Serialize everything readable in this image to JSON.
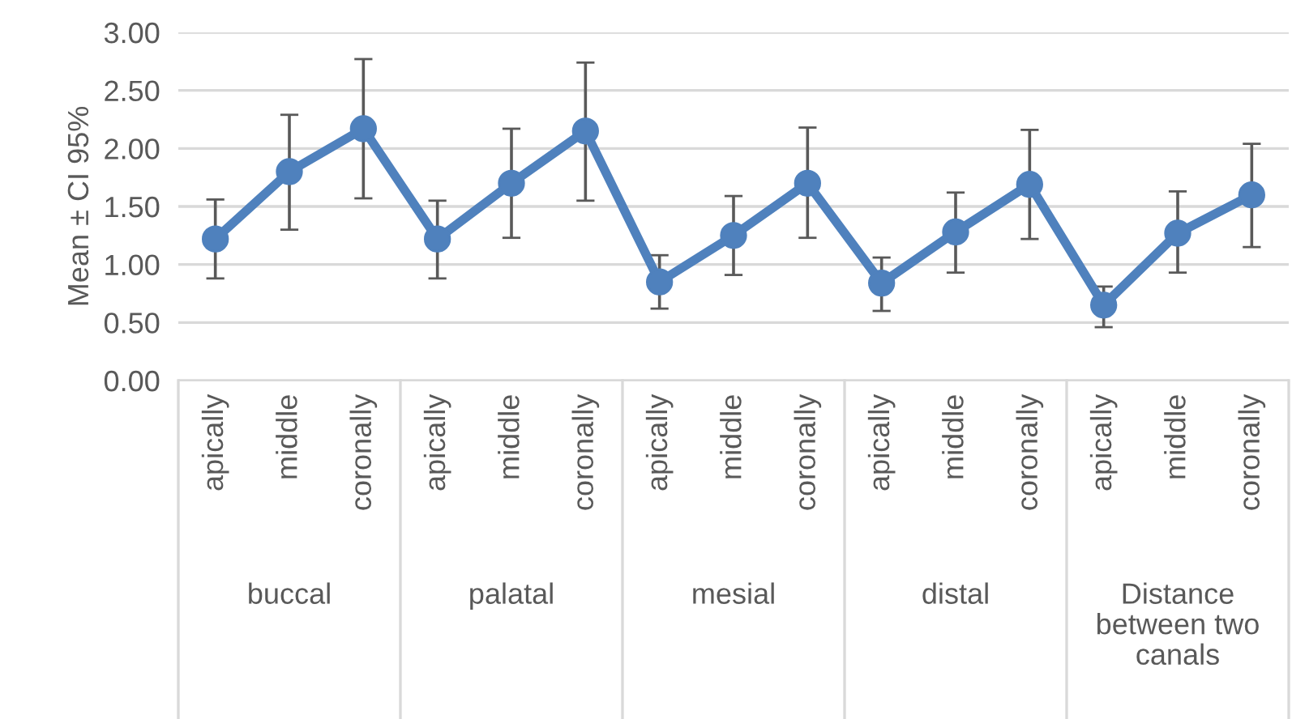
{
  "chart_data": {
    "type": "line",
    "ylabel": "Mean ± CI 95%",
    "categories": [
      "apically",
      "middle",
      "coronally",
      "apically",
      "middle",
      "coronally",
      "apically",
      "middle",
      "coronally",
      "apically",
      "middle",
      "coronally",
      "apically",
      "middle",
      "coronally"
    ],
    "annotations": [
      "buccal",
      "palatal",
      "mesial",
      "distal",
      "Distance between two canals"
    ],
    "series": [
      {
        "color": "#4f81bd",
        "values": [
          1.22,
          1.8,
          2.17,
          1.22,
          1.7,
          2.15,
          0.85,
          1.25,
          1.7,
          0.84,
          1.28,
          1.69,
          0.65,
          1.27,
          1.6
        ],
        "errors": [
          [
            0.88,
            1.56
          ],
          [
            1.3,
            2.29
          ],
          [
            1.57,
            2.77
          ],
          [
            0.88,
            1.55
          ],
          [
            1.23,
            2.17
          ],
          [
            1.55,
            2.74
          ],
          [
            0.62,
            1.08
          ],
          [
            0.91,
            1.59
          ],
          [
            1.23,
            2.18
          ],
          [
            0.6,
            1.06
          ],
          [
            0.93,
            1.62
          ],
          [
            1.22,
            2.16
          ],
          [
            0.46,
            0.81
          ],
          [
            0.93,
            1.63
          ],
          [
            1.15,
            2.04
          ]
        ]
      }
    ],
    "ylim": [
      0,
      3
    ],
    "yticks": [
      {
        "value": 0,
        "label": "0.00"
      },
      {
        "value": 0.5,
        "label": "0.50"
      },
      {
        "value": 1,
        "label": "1.00"
      },
      {
        "value": 1.5,
        "label": "1.50"
      },
      {
        "value": 2,
        "label": "2.00"
      },
      {
        "value": 2.5,
        "label": "2.50"
      },
      {
        "value": 3,
        "label": "3.00"
      }
    ],
    "grid": "y",
    "marker": "circle",
    "line_style": "solid",
    "legend": false
  }
}
